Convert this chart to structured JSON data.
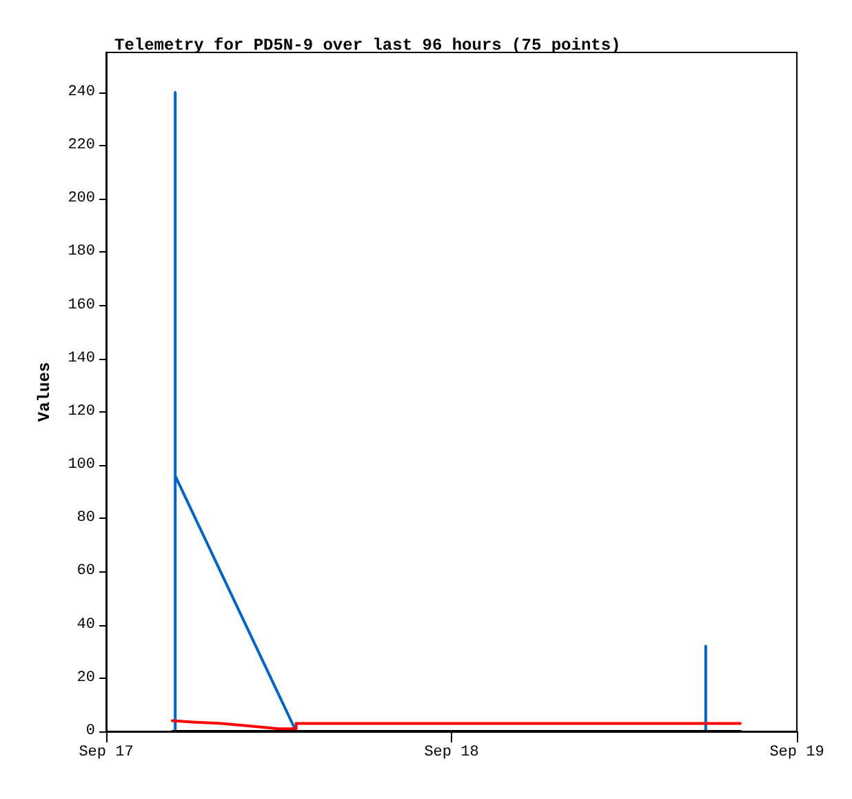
{
  "chart_data": {
    "type": "line",
    "title": "Telemetry for PD5N-9 over last 96 hours (75 points)",
    "ylabel": "Values",
    "xlim": [
      "--09-17",
      "--09-19"
    ],
    "xticks": [
      {
        "value": "--09-17",
        "label": "Sep 17"
      },
      {
        "value": "--09-18",
        "label": "Sep 18"
      },
      {
        "value": "--09-19",
        "label": "Sep 19"
      }
    ],
    "ylim": [
      0,
      255
    ],
    "yticks": [
      0,
      20,
      40,
      60,
      80,
      100,
      120,
      140,
      160,
      180,
      200,
      220,
      240
    ],
    "grid": false,
    "marker": "none",
    "line_style": "solid",
    "series": [
      {
        "color": "#0066cc",
        "x": [
          "--09-17T04:48",
          "--09-17T04:48",
          "--09-17T04:48",
          "--09-17T13:12",
          "--09-18T17:40",
          "--09-18T17:40",
          "--09-18T17:40",
          "--09-18T20:04"
        ],
        "values": [
          0,
          240,
          96,
          0,
          0,
          32,
          0,
          0
        ]
      },
      {
        "color": "#ff0000",
        "x": [
          "--09-17T04:36",
          "--09-17T06:00",
          "--09-17T08:00",
          "--09-17T10:00",
          "--09-17T12:00",
          "--09-17T13:12",
          "--09-17T13:12",
          "--09-18T20:04"
        ],
        "values": [
          4,
          3.5,
          3,
          2,
          1,
          1,
          3,
          3
        ]
      },
      {
        "color": "#000000",
        "x": [
          "--09-17T04:36",
          "--09-18T20:04"
        ],
        "values": [
          0,
          0
        ]
      }
    ]
  }
}
